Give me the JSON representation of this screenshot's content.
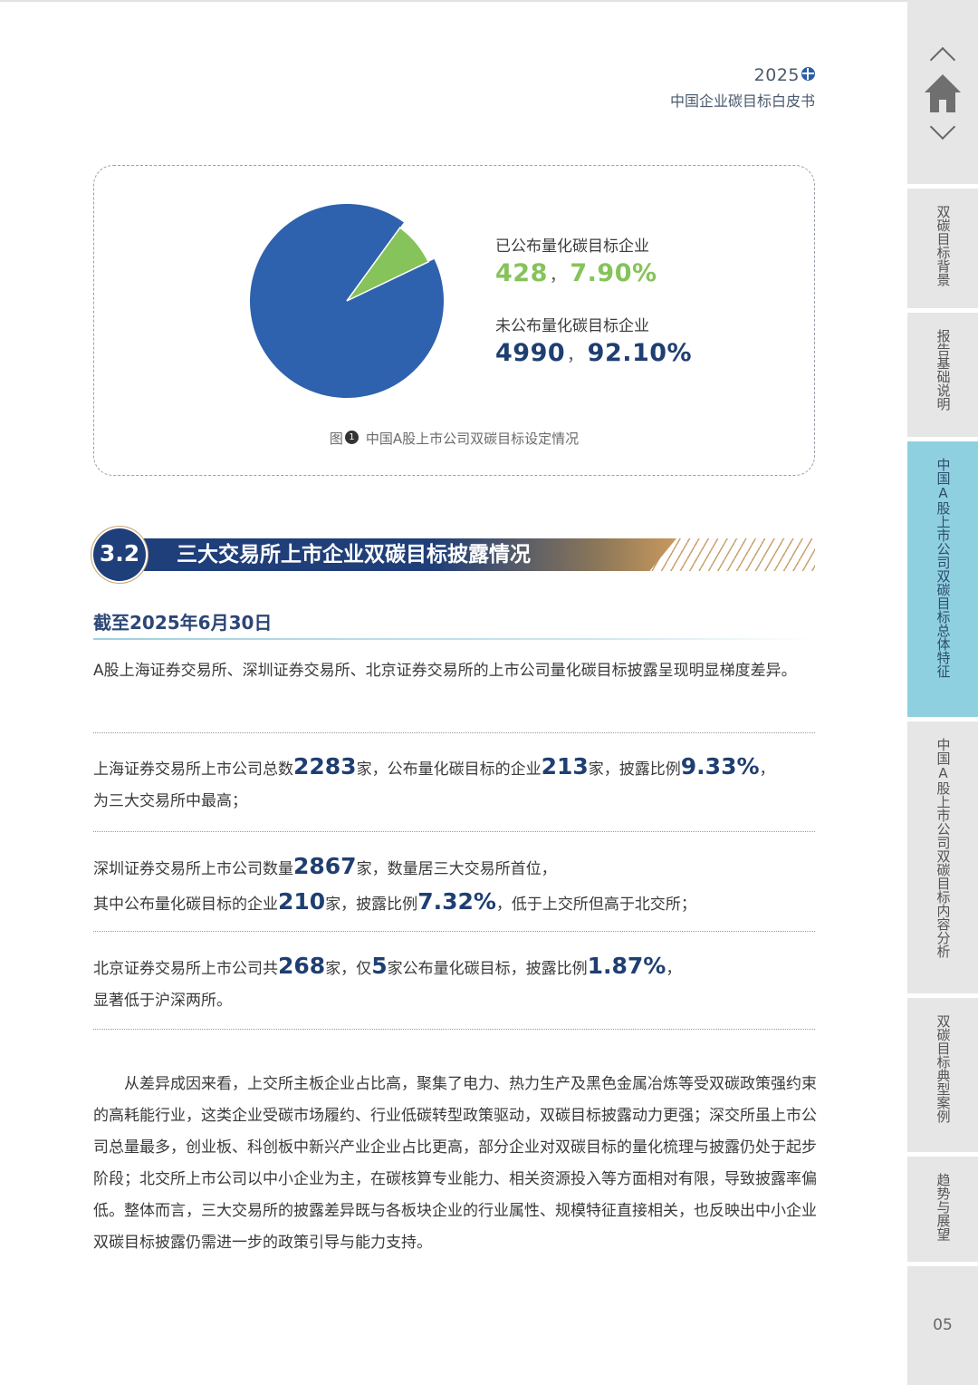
{
  "header": {
    "year": "2025",
    "subtitle": "中国企业碳目标白皮书"
  },
  "figure": {
    "legend": [
      {
        "label": "已公布量化碳目标企业",
        "count": "428",
        "percent": "7.90%",
        "color": "#86c35a"
      },
      {
        "label": "未公布量化碳目标企业",
        "count": "4990",
        "percent": "92.10%",
        "color": "#2e62ae"
      }
    ],
    "separator": "，",
    "caption_prefix": "图",
    "caption_num": "1",
    "caption": "中国A股上市公司双碳目标设定情况"
  },
  "chart_data": {
    "type": "pie",
    "slices": [
      {
        "label": "已公布量化碳目标企业",
        "value": 428,
        "percent": 7.9
      },
      {
        "label": "未公布量化碳目标企业",
        "value": 4990,
        "percent": 92.1
      }
    ],
    "colors": [
      "#86c35a",
      "#2e62ae"
    ]
  },
  "section": {
    "number": "3.2",
    "title": "三大交易所上市企业双碳目标披露情况"
  },
  "date": "截至2025年6月30日",
  "intro": "A股上海证券交易所、深圳证券交易所、北京证券交易所的上市公司量化碳目标披露呈现明显梯度差异。",
  "stats": {
    "sh": {
      "t1": "上海证券交易所上市公司总数",
      "n1": "2283",
      "t2": "家，公布量化碳目标的企业",
      "n2": "213",
      "t3": "家，披露比例",
      "n3": "9.33%",
      "t4": "，",
      "line2": "为三大交易所中最高；"
    },
    "sz": {
      "t1": "深圳证券交易所上市公司数量",
      "n1": "2867",
      "t2": "家，数量居三大交易所首位，",
      "t3": "其中公布量化碳目标的企业",
      "n2": "210",
      "t4": "家，披露比例",
      "n3": "7.32%",
      "t5": "，低于上交所但高于北交所；"
    },
    "bj": {
      "t1": "北京证券交易所上市公司共",
      "n1": "268",
      "t2": "家，仅",
      "n2": "5",
      "t3": "家公布量化碳目标，披露比例",
      "n3": "1.87%",
      "t4": "，",
      "line2": "显著低于沪深两所。"
    }
  },
  "closing": "从差异成因来看，上交所主板企业占比高，聚集了电力、热力生产及黑色金属冶炼等受双碳政策强约束的高耗能行业，这类企业受碳市场履约、行业低碳转型政策驱动，双碳目标披露动力更强；深交所虽上市公司总量最多，创业板、科创板中新兴产业企业占比更高，部分企业对双碳目标的量化梳理与披露仍处于起步阶段；北交所上市公司以中小企业为主，在碳核算专业能力、相关资源投入等方面相对有限，导致披露率偏低。整体而言，三大交易所的披露差异既与各板块企业的行业属性、规模特征直接相关，也反映出中小企业双碳目标披露仍需进一步的政策引导与能力支持。",
  "sidebar": {
    "items": [
      "双碳目标背景",
      "报告基础说明",
      "中国A股上市公司双碳目标总体特征",
      "中国A股上市公司双碳目标内容分析",
      "双碳目标典型案例",
      "趋势与展望"
    ],
    "page_number": "05"
  }
}
